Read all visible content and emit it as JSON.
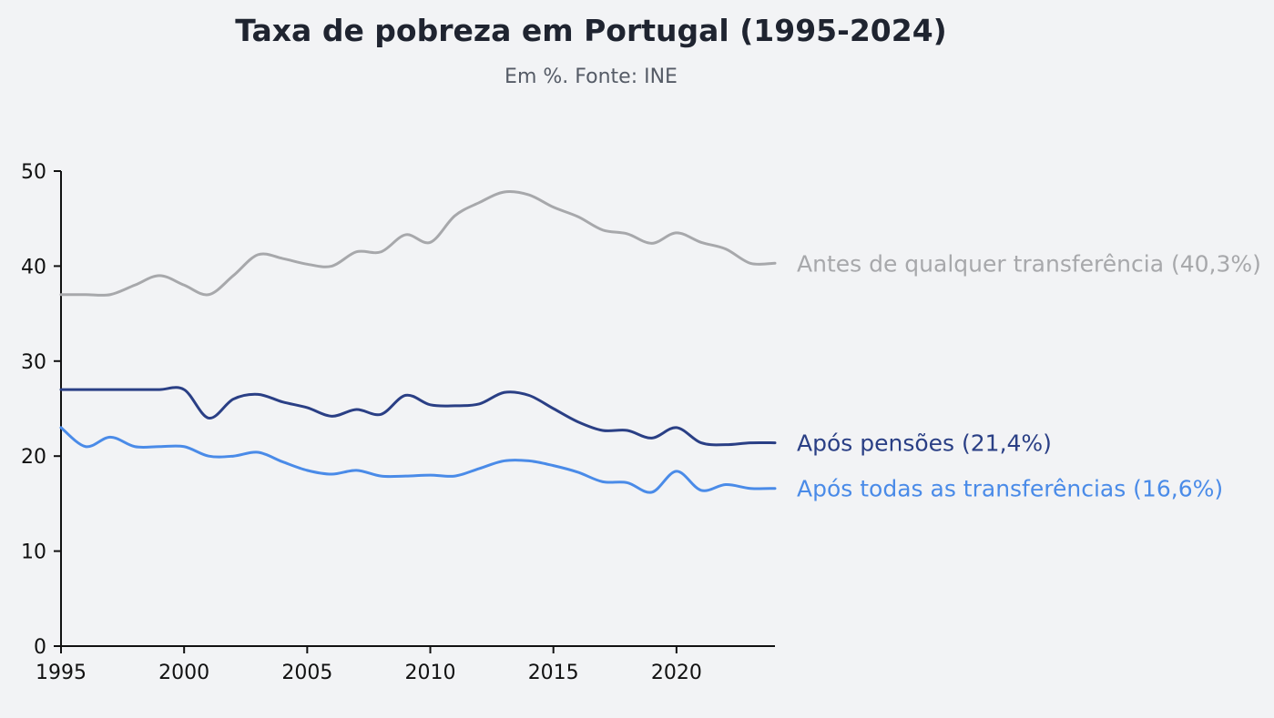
{
  "chart_data": {
    "type": "line",
    "title": "Taxa de pobreza em Portugal (1995-2024)",
    "subtitle": "Em %. Fonte: INE",
    "xlabel": "",
    "ylabel": "",
    "xlim": [
      1995,
      2024
    ],
    "ylim": [
      0,
      50
    ],
    "x_ticks": [
      1995,
      2000,
      2005,
      2010,
      2015,
      2020
    ],
    "y_ticks": [
      0,
      10,
      20,
      30,
      40,
      50
    ],
    "x": [
      1995,
      1996,
      1997,
      1998,
      1999,
      2000,
      2001,
      2002,
      2003,
      2004,
      2005,
      2006,
      2007,
      2008,
      2009,
      2010,
      2011,
      2012,
      2013,
      2014,
      2015,
      2016,
      2017,
      2018,
      2019,
      2020,
      2021,
      2022,
      2023,
      2024
    ],
    "series": [
      {
        "name": "Antes de qualquer transferência",
        "label": "Antes de qualquer transferência (40,3%)",
        "color": "#a7a8ab",
        "values": [
          37.0,
          37.0,
          37.0,
          38.0,
          39.0,
          38.0,
          37.0,
          39.0,
          41.2,
          40.8,
          40.2,
          40.0,
          41.5,
          41.5,
          43.3,
          42.5,
          45.3,
          46.7,
          47.8,
          47.5,
          46.2,
          45.2,
          43.8,
          43.4,
          42.4,
          43.5,
          42.5,
          41.8,
          40.3,
          40.3
        ]
      },
      {
        "name": "Após pensões",
        "label": "Após pensões (21,4%)",
        "color": "#2a3f85",
        "values": [
          27.0,
          27.0,
          27.0,
          27.0,
          27.0,
          27.0,
          24.0,
          26.0,
          26.5,
          25.7,
          25.1,
          24.2,
          24.9,
          24.4,
          26.4,
          25.4,
          25.3,
          25.5,
          26.7,
          26.4,
          25.0,
          23.6,
          22.7,
          22.7,
          21.9,
          23.0,
          21.4,
          21.2,
          21.4,
          21.4
        ]
      },
      {
        "name": "Após todas as transferências",
        "label": "Após todas as transferências (16,6%)",
        "color": "#4a8be8",
        "values": [
          23.0,
          21.0,
          22.0,
          21.0,
          21.0,
          21.0,
          20.0,
          20.0,
          20.4,
          19.4,
          18.5,
          18.1,
          18.5,
          17.9,
          17.9,
          18.0,
          17.9,
          18.7,
          19.5,
          19.5,
          19.0,
          18.3,
          17.3,
          17.2,
          16.2,
          18.4,
          16.4,
          17.0,
          16.6,
          16.6
        ]
      }
    ]
  }
}
